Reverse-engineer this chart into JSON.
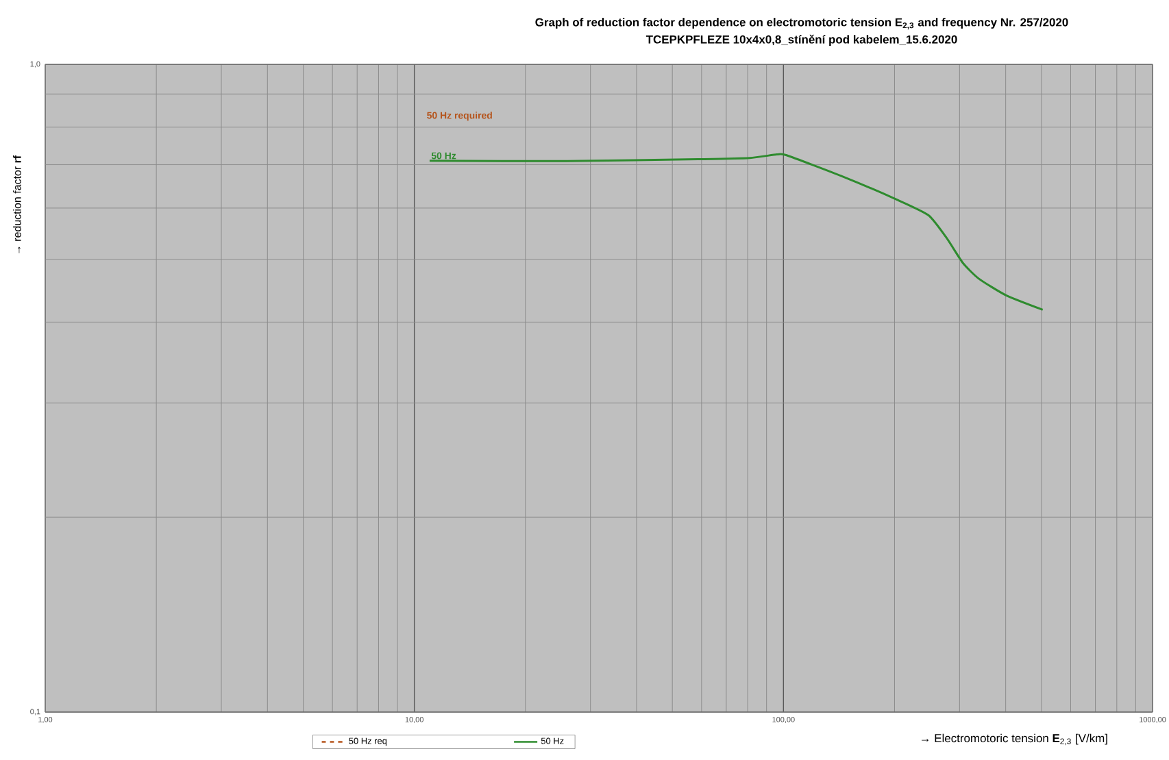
{
  "chart_data": {
    "type": "line",
    "title": "Graph of reduction factor dependence on electromotoric tension E$_{2,3}$ and frequency Nr. 257/2020",
    "subtitle": "TCEPKPFLEZE 10x4x0,8_stínění pod kabelem_15.6.2020",
    "xlabel": "→ Electromotoric tension **E**$_{2,3}$ [V/km]",
    "ylabel": "→ reduction factor **rf**",
    "log": "xy",
    "xlim": [
      1,
      1000
    ],
    "ylim": [
      0.1,
      1.0
    ],
    "xticks": [
      {
        "value": 1,
        "label": "1,00"
      },
      {
        "value": 10,
        "label": "10,00"
      },
      {
        "value": 100,
        "label": "100,00"
      },
      {
        "value": 1000,
        "label": "1000,00"
      }
    ],
    "yticks": [
      {
        "value": 0.1,
        "label": "0,1"
      },
      {
        "value": 1.0,
        "label": "1,0"
      }
    ],
    "grid": true,
    "legend": "bottom",
    "x": [
      11,
      26,
      61,
      81,
      96,
      102,
      144,
      202,
      247,
      277,
      306,
      338,
      401,
      504
    ],
    "series": [
      {
        "name": "50 Hz req",
        "color": "#b5541c",
        "line_style": "dashed",
        "values": [
          null,
          null,
          null,
          null,
          null,
          null,
          null,
          null,
          null,
          null,
          null,
          null,
          null,
          null
        ]
      },
      {
        "name": "50 Hz",
        "color": "#2e8b2e",
        "values": [
          0.71,
          0.709,
          0.714,
          0.717,
          0.726,
          0.724,
          0.672,
          0.619,
          0.585,
          0.539,
          0.494,
          0.467,
          0.44,
          0.418
        ]
      }
    ],
    "annotations": [
      "50 Hz required",
      {
        "text": "50 Hz",
        "x": 11,
        "y": 0.71
      }
    ]
  }
}
